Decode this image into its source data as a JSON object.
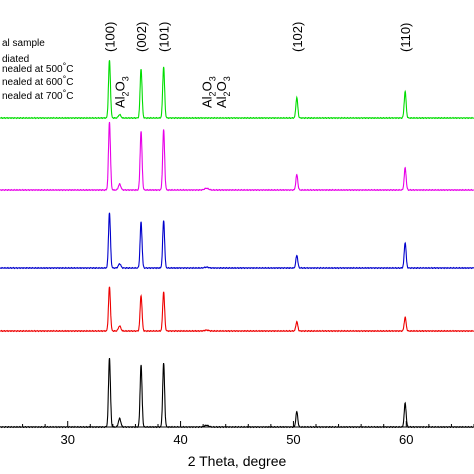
{
  "chart_data": {
    "type": "line",
    "xlabel": "2 Theta, degree",
    "xlim": [
      24,
      66
    ],
    "x_ticks": [
      "30",
      "40",
      "50",
      "60"
    ],
    "x_tick_values": [
      30,
      40,
      50,
      60
    ],
    "y_axis_visible": false,
    "grid": false,
    "legend_placement": "top-left",
    "legend": [
      "al sample",
      "diated",
      "nealed at 500°C",
      "nealed at 600°C",
      "nealed at 700°C"
    ],
    "peak_labels": [
      {
        "text": "(100)",
        "x": 33.7
      },
      {
        "text": "(002)",
        "x": 36.5
      },
      {
        "text": "(101)",
        "x": 38.5
      },
      {
        "text": "(102)",
        "x": 50.3
      },
      {
        "text": "(110)",
        "x": 59.9
      }
    ],
    "phase_labels": [
      {
        "parts": [
          "Al",
          "2",
          "O",
          "3"
        ],
        "x": 34.6
      },
      {
        "parts": [
          "Al",
          "2",
          "O",
          "3"
        ],
        "x": 42.3
      },
      {
        "parts": [
          "Al",
          "2",
          "O",
          "3"
        ],
        "x": 43.6
      }
    ],
    "peaks": [
      {
        "x": 33.7,
        "width": 0.12
      },
      {
        "x": 34.6,
        "width": 0.15
      },
      {
        "x": 36.5,
        "width": 0.12
      },
      {
        "x": 38.5,
        "width": 0.12
      },
      {
        "x": 42.3,
        "width": 0.25
      },
      {
        "x": 50.3,
        "width": 0.12
      },
      {
        "x": 59.9,
        "width": 0.12
      }
    ],
    "series": [
      {
        "color": "#00dd00",
        "intensities": [
          68,
          4,
          58,
          60,
          0,
          24,
          31
        ]
      },
      {
        "color": "#e800e8",
        "intensities": [
          80,
          7,
          69,
          71,
          2,
          18,
          26
        ]
      },
      {
        "color": "#0000cc",
        "intensities": [
          65,
          5,
          54,
          56,
          1,
          15,
          30
        ]
      },
      {
        "color": "#ee0000",
        "intensities": [
          52,
          6,
          42,
          46,
          1,
          11,
          16
        ]
      },
      {
        "color": "#000000",
        "intensities": [
          81,
          10,
          73,
          75,
          2,
          18,
          28
        ]
      }
    ]
  }
}
